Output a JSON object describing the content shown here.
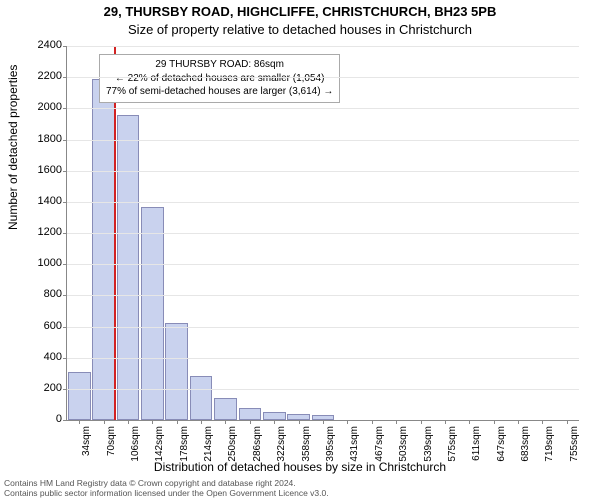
{
  "title_line1": "29, THURSBY ROAD, HIGHCLIFFE, CHRISTCHURCH, BH23 5PB",
  "title_line2": "Size of property relative to detached houses in Christchurch",
  "ylabel": "Number of detached properties",
  "xlabel": "Distribution of detached houses by size in Christchurch",
  "footer_line1": "Contains HM Land Registry data © Crown copyright and database right 2024.",
  "footer_line2": "Contains public sector information licensed under the Open Government Licence v3.0.",
  "chart": {
    "type": "bar",
    "yaxis": {
      "min": 0,
      "max": 2400,
      "step": 200
    },
    "xticks": [
      "34sqm",
      "70sqm",
      "106sqm",
      "142sqm",
      "178sqm",
      "214sqm",
      "250sqm",
      "286sqm",
      "322sqm",
      "358sqm",
      "395sqm",
      "431sqm",
      "467sqm",
      "503sqm",
      "539sqm",
      "575sqm",
      "611sqm",
      "647sqm",
      "683sqm",
      "719sqm",
      "755sqm"
    ],
    "values": [
      310,
      2190,
      1960,
      1370,
      620,
      280,
      140,
      80,
      50,
      40,
      30,
      0,
      0,
      0,
      0,
      0,
      0,
      0,
      0,
      0,
      0
    ],
    "bar_fill": "#c9d2ee",
    "bar_border": "#888cb7",
    "grid_color": "#e6e6e6",
    "background": "#ffffff",
    "marker": {
      "value_sqm": 86,
      "color": "#d22222"
    },
    "legend": {
      "line1": "29 THURSBY ROAD: 86sqm",
      "line2": "← 22% of detached houses are smaller (1,054)",
      "line3": "77% of semi-detached houses are larger (3,614) →"
    }
  }
}
